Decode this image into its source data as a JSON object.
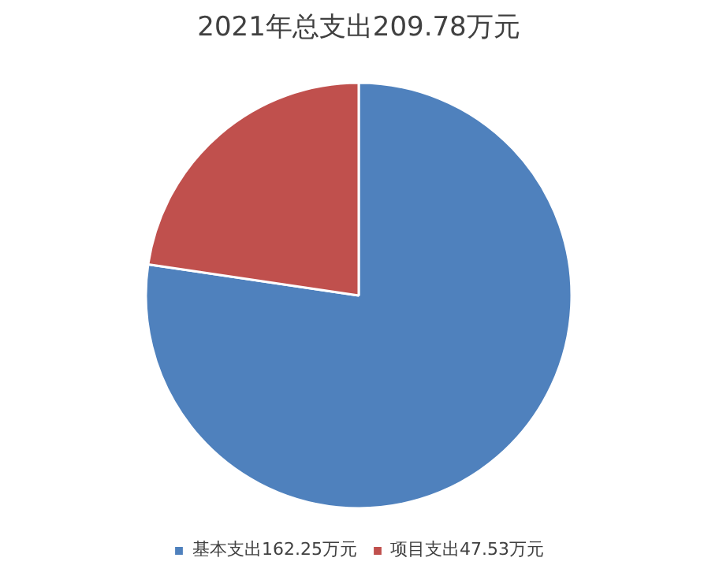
{
  "chart_data": {
    "type": "pie",
    "title": "2021年总支出209.78万元",
    "categories": [
      "基本支出162.25万元",
      "项目支出47.53万元"
    ],
    "values": [
      162.25,
      47.53
    ],
    "colors": [
      "#4f81bd",
      "#c0504d"
    ],
    "legend": "bottom"
  }
}
